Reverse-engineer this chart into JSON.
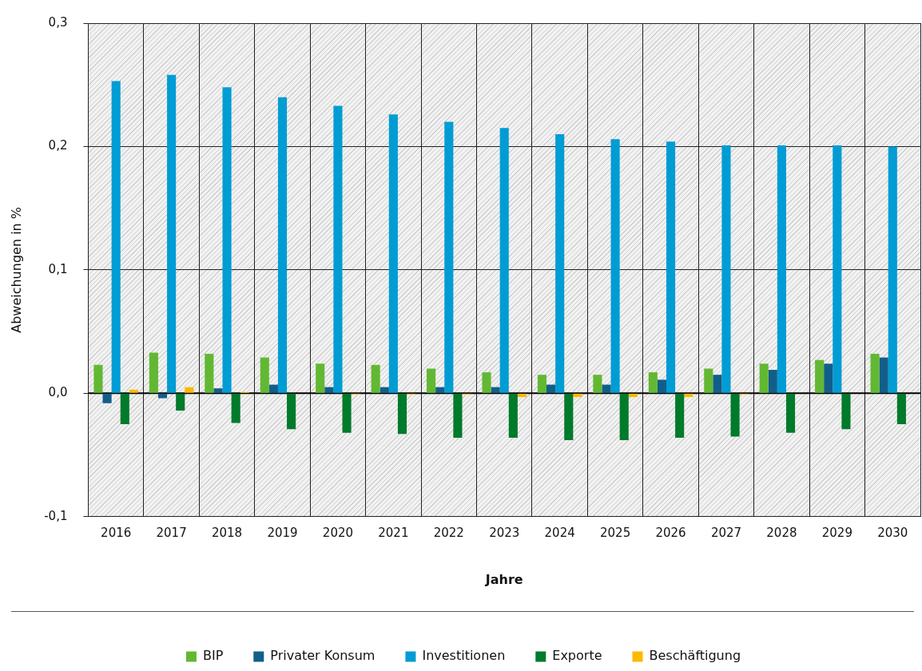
{
  "chart_data": {
    "type": "bar",
    "xlabel": "Jahre",
    "ylabel": "Abweichungen in %",
    "categories": [
      "2016",
      "2017",
      "2018",
      "2019",
      "2020",
      "2021",
      "2022",
      "2023",
      "2024",
      "2025",
      "2026",
      "2027",
      "2028",
      "2029",
      "2030"
    ],
    "series": [
      {
        "name": "BIP",
        "color": "#62b832",
        "values": [
          0.023,
          0.033,
          0.032,
          0.029,
          0.024,
          0.023,
          0.02,
          0.017,
          0.015,
          0.015,
          0.017,
          0.02,
          0.024,
          0.027,
          0.032
        ]
      },
      {
        "name": "Privater Konsum",
        "color": "#125e8a",
        "values": [
          -0.008,
          -0.004,
          0.004,
          0.007,
          0.005,
          0.005,
          0.005,
          0.005,
          0.007,
          0.007,
          0.011,
          0.015,
          0.019,
          0.024,
          0.029
        ]
      },
      {
        "name": "Investitionen",
        "color": "#009cd4",
        "values": [
          0.253,
          0.258,
          0.248,
          0.24,
          0.233,
          0.226,
          0.22,
          0.215,
          0.21,
          0.206,
          0.204,
          0.201,
          0.201,
          0.201,
          0.2
        ]
      },
      {
        "name": "Exporte",
        "color": "#007a2b",
        "values": [
          -0.025,
          -0.014,
          -0.024,
          -0.029,
          -0.032,
          -0.033,
          -0.036,
          -0.036,
          -0.038,
          -0.038,
          -0.036,
          -0.035,
          -0.032,
          -0.029,
          -0.025
        ]
      },
      {
        "name": "Beschäftigung",
        "color": "#fbb900",
        "values": [
          0.003,
          0.005,
          0.001,
          0,
          -0.001,
          -0.001,
          -0.001,
          -0.003,
          -0.003,
          -0.003,
          -0.003,
          -0.001,
          0,
          0,
          0
        ]
      }
    ],
    "ylim": [
      -0.1,
      0.3
    ],
    "yticks": [
      {
        "value": -0.1,
        "label": "-0,1"
      },
      {
        "value": 0,
        "label": "0,0"
      },
      {
        "value": 0.1,
        "label": "0,1"
      },
      {
        "value": 0.2,
        "label": "0,2"
      },
      {
        "value": 0.3,
        "label": "0,3"
      }
    ],
    "grid": true,
    "legend": "bottom"
  }
}
